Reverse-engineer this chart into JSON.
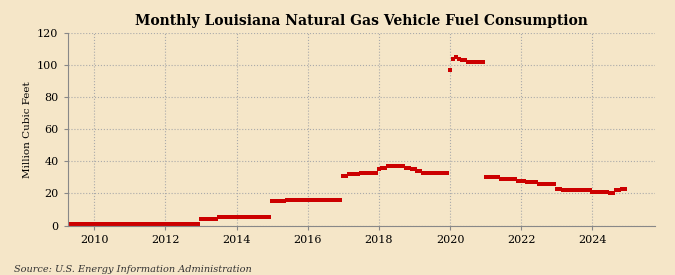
{
  "title": "Monthly Louisiana Natural Gas Vehicle Fuel Consumption",
  "ylabel": "Million Cubic Feet",
  "source": "Source: U.S. Energy Information Administration",
  "background_color": "#f5e6c8",
  "plot_bg_color": "#f5e6c8",
  "line_color": "#cc0000",
  "xlim_start": 2009.25,
  "xlim_end": 2025.75,
  "ylim": [
    0,
    120
  ],
  "yticks": [
    0,
    20,
    40,
    60,
    80,
    100,
    120
  ],
  "xticks": [
    2010,
    2012,
    2014,
    2016,
    2018,
    2020,
    2022,
    2024
  ],
  "marker_size": 2.2,
  "data": {
    "2009-02": 1,
    "2009-03": 1,
    "2009-04": 1,
    "2009-05": 1,
    "2009-06": 1,
    "2009-07": 1,
    "2009-08": 1,
    "2009-09": 1,
    "2009-10": 1,
    "2009-11": 1,
    "2009-12": 1,
    "2010-01": 1,
    "2010-02": 1,
    "2010-03": 1,
    "2010-04": 1,
    "2010-05": 1,
    "2010-06": 1,
    "2010-07": 1,
    "2010-08": 1,
    "2010-09": 1,
    "2010-10": 1,
    "2010-11": 1,
    "2010-12": 1,
    "2011-01": 1,
    "2011-02": 1,
    "2011-03": 1,
    "2011-04": 1,
    "2011-05": 1,
    "2011-06": 1,
    "2011-07": 1,
    "2011-08": 1,
    "2011-09": 1,
    "2011-10": 1,
    "2011-11": 1,
    "2011-12": 1,
    "2012-01": 1,
    "2012-02": 1,
    "2012-03": 1,
    "2012-04": 1,
    "2012-05": 1,
    "2012-06": 1,
    "2012-07": 1,
    "2012-08": 1,
    "2012-09": 1,
    "2012-10": 1,
    "2012-11": 1,
    "2012-12": 1,
    "2013-01": 4,
    "2013-02": 4,
    "2013-03": 4,
    "2013-04": 4,
    "2013-05": 4,
    "2013-06": 4,
    "2013-07": 5,
    "2013-08": 5,
    "2013-09": 5,
    "2013-10": 5,
    "2013-11": 5,
    "2013-12": 5,
    "2014-01": 5,
    "2014-02": 5,
    "2014-03": 5,
    "2014-04": 5,
    "2014-05": 5,
    "2014-06": 5,
    "2014-07": 5,
    "2014-08": 5,
    "2014-09": 5,
    "2014-10": 5,
    "2014-11": 5,
    "2014-12": 5,
    "2015-01": 15,
    "2015-02": 15,
    "2015-03": 15,
    "2015-04": 15,
    "2015-05": 15,
    "2015-06": 16,
    "2015-07": 16,
    "2015-08": 16,
    "2015-09": 16,
    "2015-10": 16,
    "2015-11": 16,
    "2015-12": 16,
    "2016-01": 16,
    "2016-02": 16,
    "2016-03": 16,
    "2016-04": 16,
    "2016-05": 16,
    "2016-06": 16,
    "2016-07": 16,
    "2016-08": 16,
    "2016-09": 16,
    "2016-10": 16,
    "2016-11": 16,
    "2016-12": 16,
    "2017-01": 31,
    "2017-02": 31,
    "2017-03": 32,
    "2017-04": 32,
    "2017-05": 32,
    "2017-06": 32,
    "2017-07": 33,
    "2017-08": 33,
    "2017-09": 33,
    "2017-10": 33,
    "2017-11": 33,
    "2017-12": 33,
    "2018-01": 35,
    "2018-02": 36,
    "2018-03": 36,
    "2018-04": 37,
    "2018-05": 37,
    "2018-06": 37,
    "2018-07": 37,
    "2018-08": 37,
    "2018-09": 37,
    "2018-10": 36,
    "2018-11": 36,
    "2018-12": 35,
    "2019-01": 35,
    "2019-02": 34,
    "2019-03": 34,
    "2019-04": 33,
    "2019-05": 33,
    "2019-06": 33,
    "2019-07": 33,
    "2019-08": 33,
    "2019-09": 33,
    "2019-10": 33,
    "2019-11": 33,
    "2019-12": 33,
    "2020-01": 97,
    "2020-02": 104,
    "2020-03": 105,
    "2020-04": 104,
    "2020-05": 103,
    "2020-06": 103,
    "2020-07": 102,
    "2020-08": 102,
    "2020-09": 102,
    "2020-10": 102,
    "2020-11": 102,
    "2020-12": 102,
    "2021-01": 30,
    "2021-02": 30,
    "2021-03": 30,
    "2021-04": 30,
    "2021-05": 30,
    "2021-06": 29,
    "2021-07": 29,
    "2021-08": 29,
    "2021-09": 29,
    "2021-10": 29,
    "2021-11": 29,
    "2021-12": 28,
    "2022-01": 28,
    "2022-02": 28,
    "2022-03": 27,
    "2022-04": 27,
    "2022-05": 27,
    "2022-06": 27,
    "2022-07": 26,
    "2022-08": 26,
    "2022-09": 26,
    "2022-10": 26,
    "2022-11": 26,
    "2022-12": 26,
    "2023-01": 23,
    "2023-02": 23,
    "2023-03": 22,
    "2023-04": 22,
    "2023-05": 22,
    "2023-06": 22,
    "2023-07": 22,
    "2023-08": 22,
    "2023-09": 22,
    "2023-10": 22,
    "2023-11": 22,
    "2023-12": 22,
    "2024-01": 21,
    "2024-02": 21,
    "2024-03": 21,
    "2024-04": 21,
    "2024-05": 21,
    "2024-06": 21,
    "2024-07": 20,
    "2024-08": 20,
    "2024-09": 22,
    "2024-10": 22,
    "2024-11": 23,
    "2024-12": 23
  }
}
